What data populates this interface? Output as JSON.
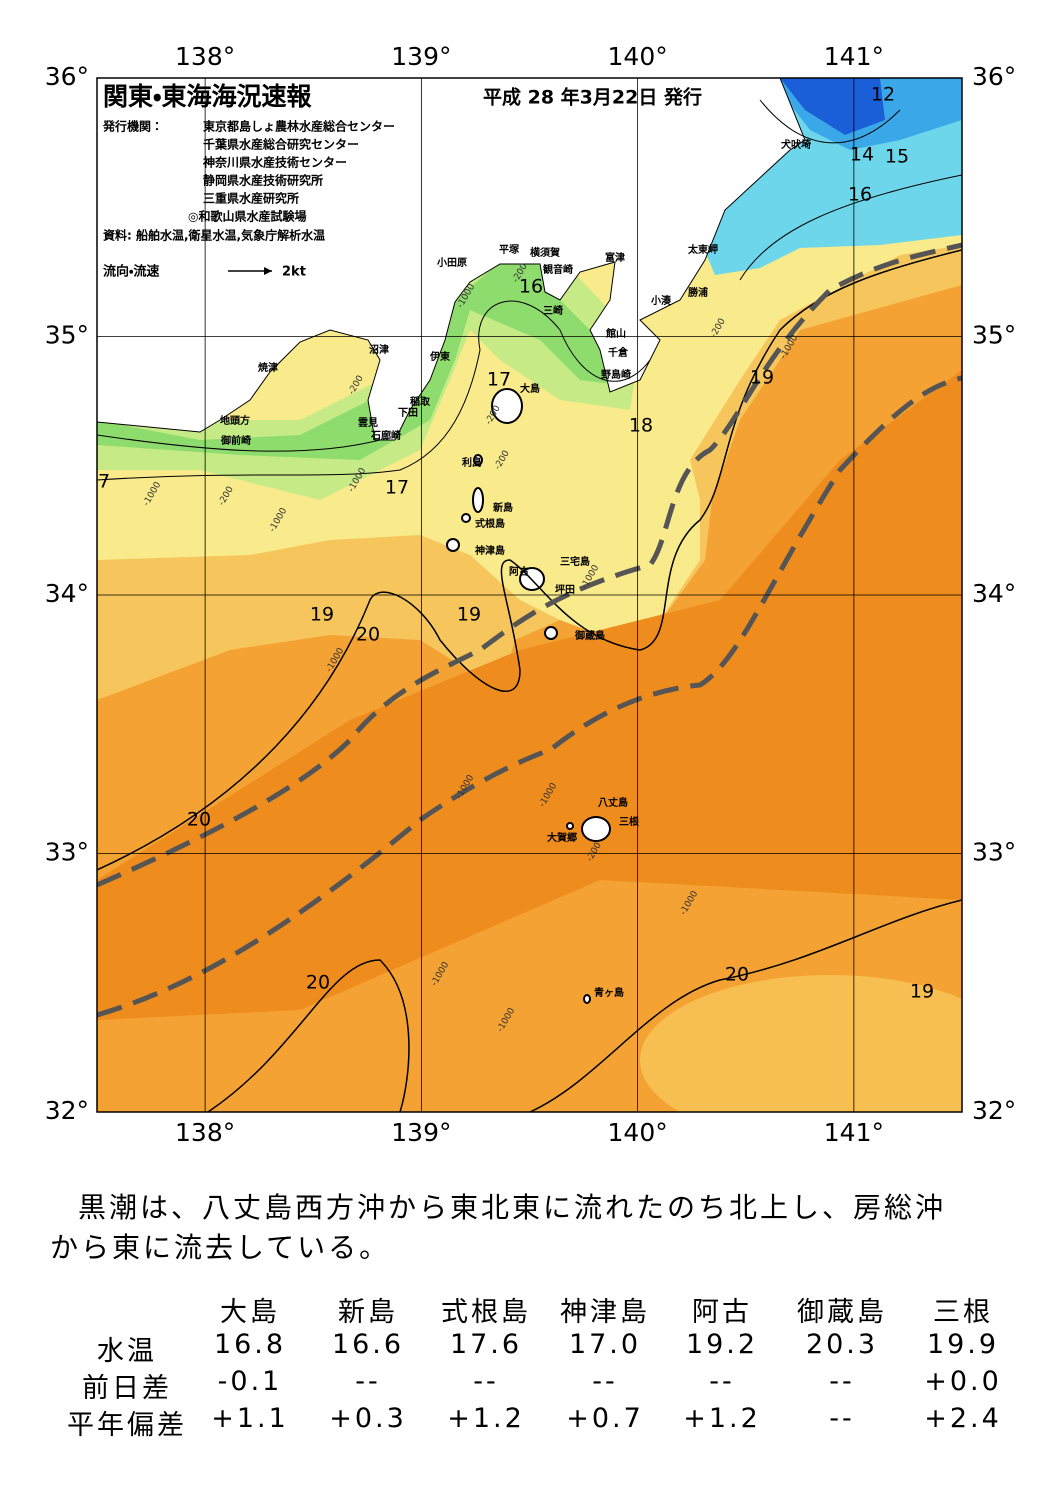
{
  "map": {
    "title": "関東・東海海況速報",
    "issue_date": "平成 28 年3月22日 発行",
    "issuer_label": "発行機関：",
    "issuers": [
      "東京都島しょ農林水産総合センター",
      "千葉県水産総合研究センター",
      "神奈川県水産技術センター",
      "静岡県水産技術研究所",
      "三重県水産研究所",
      "◎和歌山県水産試験場"
    ],
    "sources": "資料: 船舶水温,衛星水温,気象庁解析水温",
    "current_legend": "流向・流速",
    "current_scale": "2kt",
    "xlim": [
      137.5,
      141.5
    ],
    "ylim": [
      32,
      36
    ],
    "xticks": [
      {
        "value": 138,
        "label": "138°"
      },
      {
        "value": 139,
        "label": "139°"
      },
      {
        "value": 140,
        "label": "140°"
      },
      {
        "value": 141,
        "label": "141°"
      }
    ],
    "yticks": [
      {
        "value": 32,
        "label": "32°"
      },
      {
        "value": 33,
        "label": "33°"
      },
      {
        "value": 34,
        "label": "34°"
      },
      {
        "value": 35,
        "label": "35°"
      },
      {
        "value": 36,
        "label": "36°"
      }
    ],
    "place_names": [
      "犬吠埼",
      "小田原",
      "平塚",
      "横須賀",
      "観音崎",
      "富津",
      "三崎",
      "太東岬",
      "勝浦",
      "小湊",
      "館山",
      "千倉",
      "野島崎",
      "沼津",
      "伊東",
      "焼津",
      "大島",
      "稲取",
      "下田",
      "雲見",
      "石廊崎",
      "地頭方",
      "御前崎",
      "利島",
      "新島",
      "式根島",
      "神津島",
      "三宅島",
      "阿古",
      "坪田",
      "御蔵島",
      "八丈島",
      "三根",
      "大賀郷",
      "青ヶ島"
    ],
    "contour_labels": [
      12,
      14,
      15,
      16,
      16,
      17,
      18,
      19,
      17,
      7,
      19,
      20,
      19,
      20,
      20,
      20,
      19
    ],
    "depth_labels": [
      -200,
      -1000,
      -200,
      -1000,
      -200,
      -200,
      -200,
      -1000,
      -1000,
      -200,
      -1000,
      -1000,
      -1000,
      -1000,
      -1000,
      -200,
      -1000,
      -1000,
      -1000
    ]
  },
  "summary": [
    "黒潮は、八丈島西方沖から東北東に流れたのち北上し、房総沖",
    "から東に流去している。"
  ],
  "table": {
    "columns": [
      "大島",
      "新島",
      "式根島",
      "神津島",
      "阿古",
      "御蔵島",
      "三根"
    ],
    "rows": [
      {
        "label": "水温",
        "values": [
          "16.8",
          "16.6",
          "17.6",
          "17.0",
          "19.2",
          "20.3",
          "19.9"
        ]
      },
      {
        "label": "前日差",
        "values": [
          "-0.1",
          "--",
          "--",
          "--",
          "--",
          "--",
          "+0.0"
        ]
      },
      {
        "label": "平年偏差",
        "values": [
          "+1.1",
          "+0.3",
          "+1.2",
          "+0.7",
          "+1.2",
          "--",
          "+2.4"
        ]
      }
    ]
  }
}
